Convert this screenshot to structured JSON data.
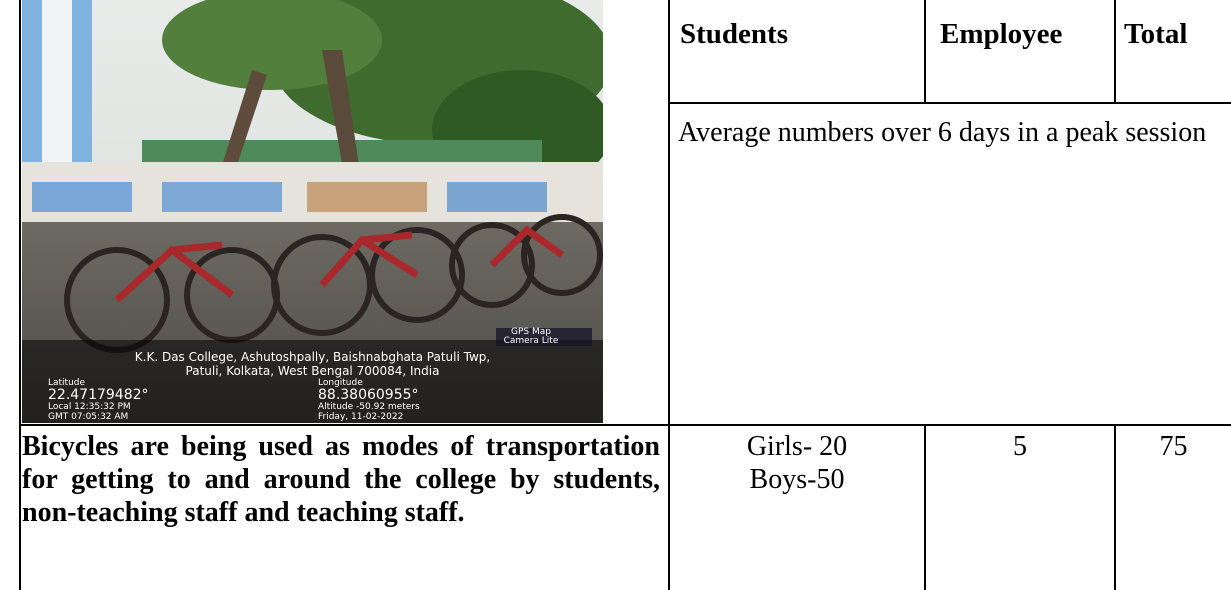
{
  "photo": {
    "badge": [
      "GPS Map",
      "Camera Lite"
    ],
    "address_lines": [
      "K.K. Das College, Ashutoshpally, Baishnabghata Patuli Twp,",
      "Patuli, Kolkata, West Bengal 700084, India"
    ],
    "latitude_label": "Latitude",
    "latitude": "22.47179482°",
    "longitude_label": "Longitude",
    "longitude": "88.38060955°",
    "local_time": "Local 12:35:32 PM",
    "gmt_time": "GMT 07:05:32 AM",
    "altitude": "Altitude -50.92 meters",
    "date": "Friday, 11-02-2022"
  },
  "table": {
    "header": [
      "Students",
      "Employee",
      "Total"
    ],
    "note": "Average numbers over 6 days in a peak session",
    "row": {
      "description": "Bicycles are being used as modes of transportation for getting to and around the college by students, non-teaching staff and teaching staff.",
      "students": [
        "Girls- 20",
        "Boys-50"
      ],
      "employee": "5",
      "total": "75"
    }
  }
}
